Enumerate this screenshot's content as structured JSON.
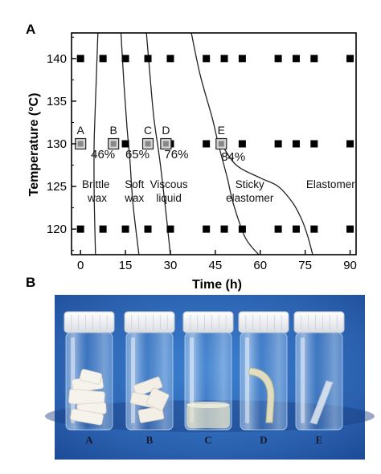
{
  "panel_a_label": "A",
  "panel_b_label": "B",
  "chart_data": {
    "type": "scatter",
    "xlabel": "Time (h)",
    "ylabel": "Temperature (°C)",
    "xlim": [
      -3,
      92
    ],
    "ylim": [
      117,
      143
    ],
    "xticks": [
      0,
      15,
      30,
      45,
      60,
      75,
      90
    ],
    "yticks": [
      120,
      125,
      130,
      135,
      140
    ],
    "grid": false,
    "series": [
      {
        "points": [
          {
            "x": 0,
            "y": 140
          },
          {
            "x": 7.5,
            "y": 140
          },
          {
            "x": 15,
            "y": 140
          },
          {
            "x": 22.5,
            "y": 140
          },
          {
            "x": 30,
            "y": 140
          },
          {
            "x": 42,
            "y": 140
          },
          {
            "x": 48,
            "y": 140
          },
          {
            "x": 54,
            "y": 140
          },
          {
            "x": 66,
            "y": 140
          },
          {
            "x": 72,
            "y": 140
          },
          {
            "x": 78,
            "y": 140
          },
          {
            "x": 90,
            "y": 140
          },
          {
            "x": 0,
            "y": 130
          },
          {
            "x": 15,
            "y": 130
          },
          {
            "x": 30,
            "y": 130
          },
          {
            "x": 42,
            "y": 130
          },
          {
            "x": 54,
            "y": 130
          },
          {
            "x": 66,
            "y": 130
          },
          {
            "x": 72,
            "y": 130
          },
          {
            "x": 78,
            "y": 130
          },
          {
            "x": 90,
            "y": 130
          },
          {
            "x": 0,
            "y": 120
          },
          {
            "x": 7.5,
            "y": 120
          },
          {
            "x": 15,
            "y": 120
          },
          {
            "x": 22.5,
            "y": 120
          },
          {
            "x": 30,
            "y": 120
          },
          {
            "x": 42,
            "y": 120
          },
          {
            "x": 48,
            "y": 120
          },
          {
            "x": 54,
            "y": 120
          },
          {
            "x": 66,
            "y": 120
          },
          {
            "x": 72,
            "y": 120
          },
          {
            "x": 78,
            "y": 120
          },
          {
            "x": 90,
            "y": 120
          }
        ]
      }
    ],
    "highlighted_points": [
      {
        "label": "A",
        "x": 0,
        "y": 130
      },
      {
        "label": "B",
        "x": 11,
        "y": 130
      },
      {
        "label": "C",
        "x": 22.5,
        "y": 130
      },
      {
        "label": "D",
        "x": 28.5,
        "y": 130
      },
      {
        "label": "E",
        "x": 47,
        "y": 130
      }
    ],
    "boundary_curves": [
      {
        "label": "46%",
        "label_at": {
          "x": 7.5,
          "y": 128.3
        },
        "points": [
          [
            5.8,
            143
          ],
          [
            5.2,
            137
          ],
          [
            4.6,
            131
          ],
          [
            4.5,
            128
          ],
          [
            4.6,
            123
          ],
          [
            5.0,
            117
          ]
        ]
      },
      {
        "label": "65%",
        "label_at": {
          "x": 19,
          "y": 128.3
        },
        "points": [
          [
            13.5,
            143
          ],
          [
            14.5,
            137
          ],
          [
            15.5,
            132
          ],
          [
            16.5,
            128
          ],
          [
            17.5,
            123
          ],
          [
            19.5,
            117
          ]
        ]
      },
      {
        "label": "76%",
        "label_at": {
          "x": 32,
          "y": 128.3
        },
        "points": [
          [
            22,
            143
          ],
          [
            23.2,
            138
          ],
          [
            24.5,
            133
          ],
          [
            26.5,
            128
          ],
          [
            28.5,
            122
          ],
          [
            30,
            117
          ]
        ]
      },
      {
        "label": "84%",
        "label_at": {
          "x": 51,
          "y": 128.0
        },
        "points": [
          [
            37,
            143
          ],
          [
            40,
            138
          ],
          [
            44,
            133
          ],
          [
            46,
            130
          ],
          [
            49,
            126
          ],
          [
            51,
            123
          ],
          [
            55,
            119
          ],
          [
            59.5,
            117
          ]
        ]
      },
      {
        "label": "",
        "points": [
          [
            47,
            130
          ],
          [
            52,
            127.5
          ],
          [
            60,
            126
          ],
          [
            66,
            125
          ],
          [
            71,
            123
          ],
          [
            74,
            121
          ],
          [
            76,
            119
          ],
          [
            77.5,
            117
          ]
        ]
      }
    ],
    "region_labels": [
      {
        "lines": [
          "Brittle",
          "wax"
        ],
        "x": 0.5,
        "y": 124.8
      },
      {
        "lines": [
          "Soft",
          "wax"
        ],
        "x": 18,
        "y": 124.8
      },
      {
        "lines": [
          "Viscous",
          "liquid"
        ],
        "x": 29.5,
        "y": 124.8
      },
      {
        "lines": [
          "Sticky",
          "elastomer"
        ],
        "x": 56.5,
        "y": 124.8
      },
      {
        "lines": [
          "Elastomer"
        ],
        "x": 83.5,
        "y": 124.8
      }
    ]
  },
  "photo": {
    "background_color": "#2f6ab8",
    "vial_labels": [
      "A",
      "B",
      "C",
      "D",
      "E"
    ]
  }
}
